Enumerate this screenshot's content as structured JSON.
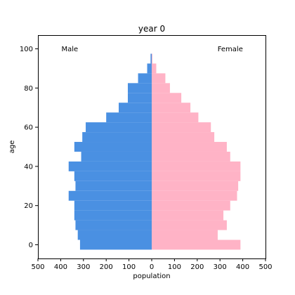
{
  "chart_data": {
    "type": "bar",
    "orientation": "horizontal",
    "title": "year 0",
    "xlabel": "population",
    "ylabel": "age",
    "xlim": [
      -500,
      500
    ],
    "ylim": [
      -7,
      107
    ],
    "xticks": [
      -500,
      -400,
      -300,
      -200,
      -100,
      0,
      100,
      200,
      300,
      400,
      500
    ],
    "xtick_labels": [
      "500",
      "400",
      "300",
      "200",
      "100",
      "0",
      "100",
      "200",
      "300",
      "400",
      "500"
    ],
    "yticks": [
      0,
      20,
      40,
      60,
      80,
      100
    ],
    "ytick_labels": [
      "0",
      "20",
      "40",
      "60",
      "80",
      "100"
    ],
    "bin_width": 5,
    "age_bins": [
      0,
      5,
      10,
      15,
      20,
      25,
      30,
      35,
      40,
      45,
      50,
      55,
      60,
      65,
      70,
      75,
      80,
      85,
      90,
      95,
      100
    ],
    "annotations": [
      {
        "text": "Male",
        "x": -360,
        "y": 100
      },
      {
        "text": "Female",
        "x": 345,
        "y": 100
      }
    ],
    "series": [
      {
        "name": "Male",
        "color": "#4a90e2",
        "values": [
          315,
          325,
          335,
          340,
          340,
          365,
          335,
          340,
          365,
          310,
          340,
          305,
          290,
          200,
          145,
          105,
          105,
          60,
          20,
          5,
          0
        ]
      },
      {
        "name": "Female",
        "color": "#ffb3c6",
        "values": [
          390,
          290,
          330,
          315,
          345,
          375,
          380,
          390,
          390,
          345,
          330,
          275,
          260,
          205,
          170,
          130,
          80,
          60,
          20,
          3,
          0
        ]
      }
    ]
  }
}
